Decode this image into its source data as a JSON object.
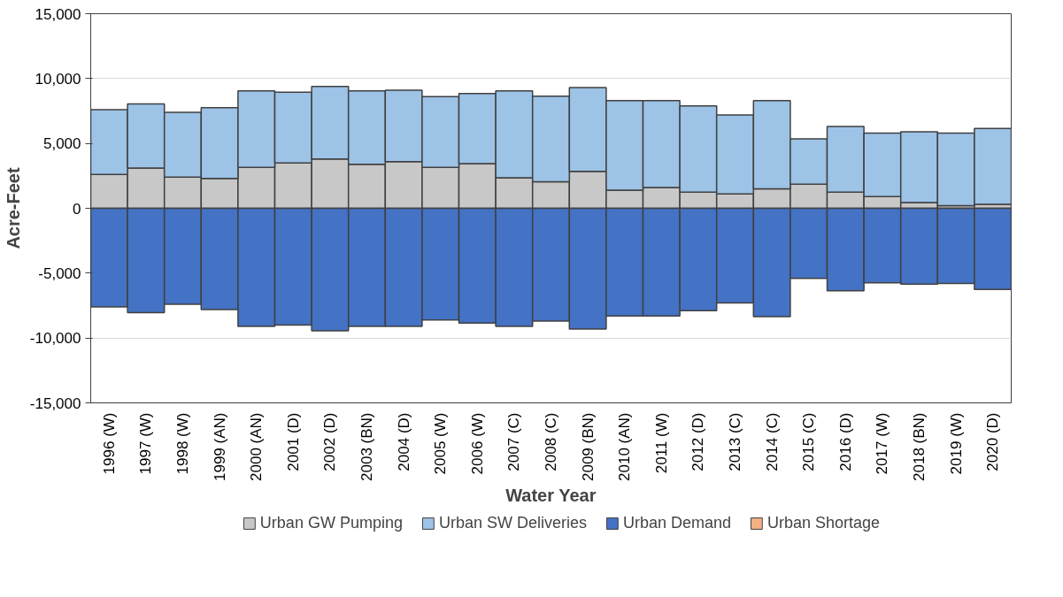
{
  "chart_data": {
    "type": "bar",
    "stacked": true,
    "xlabel": "Water Year",
    "ylabel": "Acre-Feet",
    "categories": [
      "1996 (W)",
      "1997 (W)",
      "1998 (W)",
      "1999 (AN)",
      "2000 (AN)",
      "2001 (D)",
      "2002 (D)",
      "2003 (BN)",
      "2004 (D)",
      "2005 (W)",
      "2006 (W)",
      "2007 (C)",
      "2008 (C)",
      "2009 (BN)",
      "2010 (AN)",
      "2011 (W)",
      "2012 (D)",
      "2013 (C)",
      "2014 (C)",
      "2015 (C)",
      "2016 (D)",
      "2017 (W)",
      "2018 (BN)",
      "2019 (W)",
      "2020 (D)"
    ],
    "series": [
      {
        "name": "Urban GW Pumping",
        "color": "#c8c8c8",
        "values": [
          2600,
          3100,
          2400,
          2300,
          3150,
          3500,
          3800,
          3400,
          3600,
          3150,
          3450,
          2350,
          2050,
          2850,
          1400,
          1600,
          1250,
          1100,
          1500,
          1850,
          1250,
          900,
          450,
          200,
          300
        ]
      },
      {
        "name": "Urban SW Deliveries",
        "color": "#9dc3e6",
        "values": [
          5000,
          4950,
          5000,
          5450,
          5900,
          5450,
          5600,
          5650,
          5500,
          5450,
          5400,
          6700,
          6600,
          6450,
          6900,
          6700,
          6650,
          6100,
          6800,
          3500,
          5050,
          4900,
          5450,
          5600,
          5850
        ]
      },
      {
        "name": "Urban Demand",
        "color": "#4472c4",
        "values": [
          -7600,
          -8050,
          -7400,
          -7800,
          -9100,
          -9000,
          -9450,
          -9100,
          -9100,
          -8600,
          -8850,
          -9100,
          -8700,
          -9300,
          -8300,
          -8300,
          -7900,
          -7300,
          -8350,
          -5400,
          -6350,
          -5750,
          -5850,
          -5800,
          -6250
        ]
      },
      {
        "name": "Urban Shortage",
        "color": "#f4b183",
        "values": [
          0,
          0,
          0,
          0,
          0,
          0,
          0,
          0,
          0,
          0,
          0,
          0,
          0,
          0,
          0,
          0,
          0,
          0,
          0,
          0,
          0,
          0,
          0,
          0,
          0
        ]
      }
    ],
    "ylim": [
      -15000,
      15000
    ],
    "yticks": [
      {
        "value": -15000,
        "label": "-15,000"
      },
      {
        "value": -10000,
        "label": "-10,000"
      },
      {
        "value": -5000,
        "label": "-5,000"
      },
      0,
      {
        "value": 5000,
        "label": "5,000"
      },
      {
        "value": 10000,
        "label": "10,000"
      },
      {
        "value": 15000,
        "label": "15,000"
      }
    ],
    "grid": "y",
    "legend": "bottom"
  }
}
